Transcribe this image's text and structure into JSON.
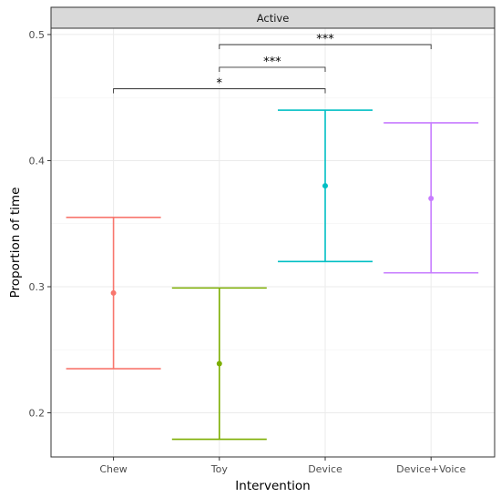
{
  "chart_data": {
    "type": "errorbar",
    "facet_label": "Active",
    "xlabel": "Intervention",
    "ylabel": "Proportion of time",
    "categories": [
      "Chew",
      "Toy",
      "Device",
      "Device+Voice"
    ],
    "estimates": [
      0.295,
      0.239,
      0.38,
      0.37
    ],
    "lower": [
      0.235,
      0.179,
      0.32,
      0.311
    ],
    "upper": [
      0.355,
      0.299,
      0.44,
      0.43
    ],
    "colors": [
      "#F8766D",
      "#7CAE00",
      "#00BFC4",
      "#C77CFF"
    ],
    "ylim": [
      0.165,
      0.505
    ],
    "yticks": [
      0.2,
      0.3,
      0.4,
      0.5
    ],
    "ytick_labels": [
      "0.2",
      "0.3",
      "0.4",
      "0.5"
    ],
    "grid": true,
    "legend": "none",
    "significance": [
      {
        "from": "Chew",
        "to": "Device",
        "label": "*"
      },
      {
        "from": "Toy",
        "to": "Device",
        "label": "***"
      },
      {
        "from": "Toy",
        "to": "Device+Voice",
        "label": "***"
      }
    ]
  }
}
